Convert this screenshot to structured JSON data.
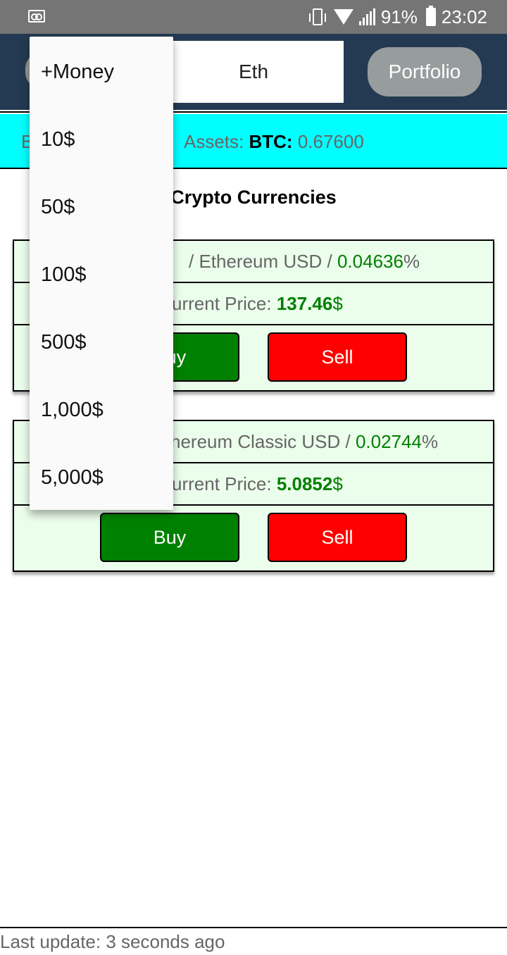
{
  "status_bar": {
    "battery_percent": "91%",
    "time": "23:02"
  },
  "header": {
    "tab_eth": "Eth",
    "portfolio_label": "Portfolio"
  },
  "info_bar": {
    "left_fragment": "B",
    "assets_label": "Assets:",
    "asset_symbol": "BTC:",
    "asset_value": "0.67600"
  },
  "section_title": "Crypto Currencies",
  "cards": [
    {
      "name_text": "/ Ethereum USD / ",
      "change_value": "0.04636",
      "change_unit": "%",
      "price_label": "urrent Price: ",
      "price_value": "137.46",
      "price_unit": "$",
      "buy_label": "Buy",
      "sell_label": "Sell"
    },
    {
      "name_text": "hereum Classic USD / ",
      "change_value": "0.02744",
      "change_unit": "%",
      "price_label": "urrent Price: ",
      "price_value": "5.0852",
      "price_unit": "$",
      "buy_label": "Buy",
      "sell_label": "Sell"
    }
  ],
  "dropdown": {
    "items": [
      "+Money",
      "10$",
      "50$",
      "100$",
      "500$",
      "1,000$",
      "5,000$"
    ]
  },
  "footer": {
    "last_update": "Last update: 3 seconds ago"
  },
  "colors": {
    "header_bg": "#243a52",
    "info_bar_bg": "#00ffff",
    "card_bg": "#ebfdeb",
    "buy": "#008000",
    "sell": "#ff0000"
  }
}
